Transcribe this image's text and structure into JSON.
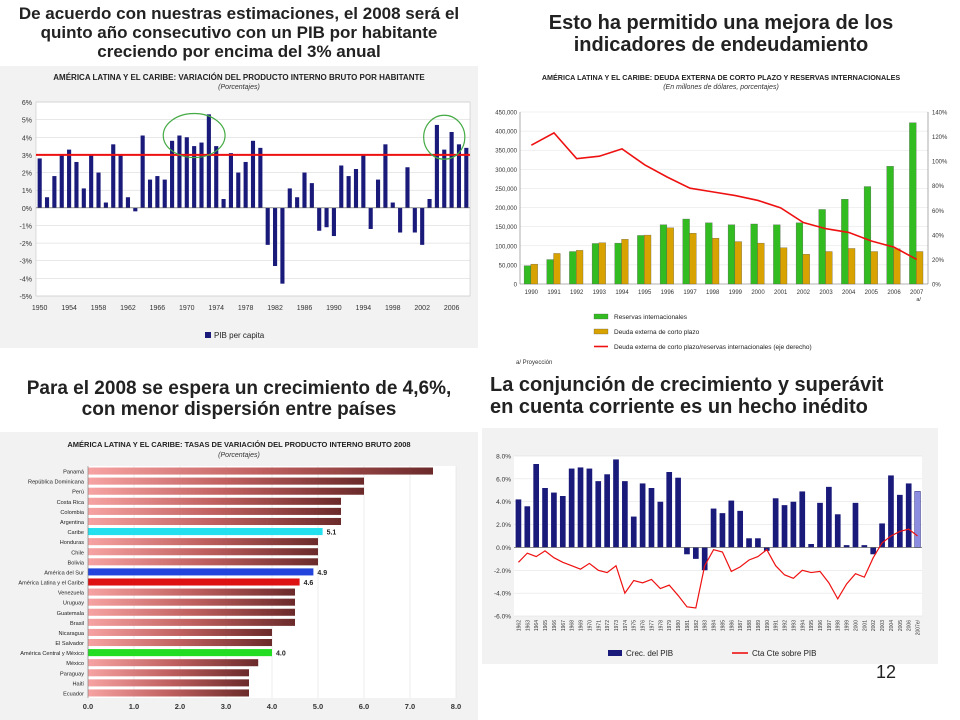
{
  "page_number": "12",
  "panels": {
    "top_left": {
      "heading": "De acuerdo con nuestras estimaciones, el 2008 será el\nquinto año consecutivo con un PIB por habitante\ncreciendo por encima del 3% anual",
      "chart_title": "AMÉRICA LATINA Y EL CARIBE: VARIACIÓN DEL PRODUCTO INTERNO BRUTO POR HABITANTE",
      "chart_subtitle": "(Porcentajes)",
      "legend_label": "PIB per capita"
    },
    "top_right": {
      "heading": "Esto ha permitido una mejora de los\nindicadores de endeudamiento",
      "chart_title": "AMÉRICA LATINA Y EL CARIBE: DEUDA EXTERNA DE CORTO PLAZO Y RESERVAS INTERNACIONALES",
      "chart_subtitle": "(En millones de dólares, porcentajes)",
      "footnote": "a/ Proyección"
    },
    "bottom_left": {
      "heading": "Para el 2008 se espera un crecimiento de 4,6%,\ncon menor dispersión entre países",
      "chart_title": "AMÉRICA LATINA Y EL CARIBE: TASAS DE VARIACIÓN DEL PRODUCTO INTERNO BRUTO 2008",
      "chart_subtitle": "(Porcentajes)"
    },
    "bottom_right": {
      "heading": "La conjunción de crecimiento y superávit\nen cuenta corriente es un hecho inédito"
    }
  },
  "colors": {
    "navy": "#1a1a7a",
    "red": "#ee1111",
    "green": "#33bb22",
    "gold": "#d8a200",
    "ellipse": "#44aa44"
  },
  "chart_data": [
    {
      "type": "bar",
      "title": "AMÉRICA LATINA Y EL CARIBE: VARIACIÓN DEL PRODUCTO INTERNO BRUTO POR HABITANTE",
      "subtitle": "(Porcentajes)",
      "ylim": [
        -5,
        6
      ],
      "yticks": [
        "6%",
        "5%",
        "4%",
        "3%",
        "2%",
        "1%",
        "0%",
        "-1%",
        "-2%",
        "-3%",
        "-4%",
        "-5%"
      ],
      "xtick_labels": [
        "1950",
        "1954",
        "1958",
        "1962",
        "1966",
        "1970",
        "1974",
        "1978",
        "1982",
        "1986",
        "1990",
        "1994",
        "1998",
        "2002",
        "2006"
      ],
      "x": [
        1950,
        1951,
        1952,
        1953,
        1954,
        1955,
        1956,
        1957,
        1958,
        1959,
        1960,
        1961,
        1962,
        1963,
        1964,
        1965,
        1966,
        1967,
        1968,
        1969,
        1970,
        1971,
        1972,
        1973,
        1974,
        1975,
        1976,
        1977,
        1978,
        1979,
        1980,
        1981,
        1982,
        1983,
        1984,
        1985,
        1986,
        1987,
        1988,
        1989,
        1990,
        1991,
        1992,
        1993,
        1994,
        1995,
        1996,
        1997,
        1998,
        1999,
        2000,
        2001,
        2002,
        2003,
        2004,
        2005,
        2006,
        2007,
        2008
      ],
      "series": [
        {
          "name": "PIB per capita",
          "values": [
            2.8,
            0.6,
            1.8,
            3.0,
            3.3,
            2.6,
            1.1,
            3.0,
            2.0,
            0.3,
            3.6,
            3.0,
            0.6,
            -0.2,
            4.1,
            1.6,
            1.8,
            1.6,
            3.8,
            4.1,
            4.0,
            3.5,
            3.7,
            5.3,
            3.5,
            0.5,
            3.1,
            2.0,
            2.6,
            3.8,
            3.4,
            -2.1,
            -3.3,
            -4.3,
            1.1,
            0.6,
            2.0,
            1.4,
            -1.3,
            -1.1,
            -1.6,
            2.4,
            1.8,
            2.2,
            3.0,
            -1.2,
            1.6,
            3.6,
            0.3,
            -1.4,
            2.3,
            -1.4,
            -2.1,
            0.5,
            4.7,
            3.3,
            4.3,
            3.6,
            3.4
          ]
        }
      ],
      "reference_line": 3,
      "legend": "bottom"
    },
    {
      "type": "bar",
      "title": "AMÉRICA LATINA Y EL CARIBE: DEUDA EXTERNA DE CORTO PLAZO Y RESERVAS INTERNACIONALES",
      "subtitle": "(En millones de dólares, porcentajes)",
      "categories": [
        "1990",
        "1991",
        "1992",
        "1993",
        "1994",
        "1995",
        "1996",
        "1997",
        "1998",
        "1999",
        "2000",
        "2001",
        "2002",
        "2003",
        "2004",
        "2005",
        "2006",
        "2007 a/"
      ],
      "ylim": [
        0,
        450000
      ],
      "yticks": [
        "0",
        "50,000",
        "100,000",
        "150,000",
        "200,000",
        "250,000",
        "300,000",
        "350,000",
        "400,000",
        "450,000"
      ],
      "y2lim": [
        0,
        140
      ],
      "y2ticks": [
        "0%",
        "20%",
        "40%",
        "60%",
        "80%",
        "100%",
        "120%",
        "140%"
      ],
      "series": [
        {
          "name": "Reservas internacionales",
          "values": [
            48000,
            64000,
            85000,
            106000,
            107000,
            127000,
            155000,
            170000,
            160000,
            155000,
            157000,
            155000,
            160000,
            195000,
            222000,
            255000,
            308000,
            422000
          ]
        },
        {
          "name": "Deuda externa de corto plazo",
          "values": [
            52000,
            80000,
            88000,
            108000,
            117000,
            128000,
            147000,
            133000,
            120000,
            111000,
            107000,
            95000,
            78000,
            85000,
            93000,
            85000,
            92000,
            85000
          ]
        },
        {
          "name": "Deuda externa de corto plazo/reservas internacionales (eje derecho)",
          "axis": "right",
          "values": [
            113,
            123,
            102,
            104,
            110,
            97,
            87,
            78,
            75,
            72,
            68,
            62,
            50,
            45,
            42,
            35,
            30,
            20
          ]
        }
      ],
      "legend": "bottom"
    },
    {
      "type": "bar",
      "title": "AMÉRICA LATINA Y EL CARIBE: TASAS DE VARIACIÓN DEL PRODUCTO INTERNO BRUTO 2008",
      "subtitle": "(Porcentajes)",
      "orientation": "horizontal",
      "categories": [
        "Panamá",
        "República Dominicana",
        "Perú",
        "Costa Rica",
        "Colombia",
        "Argentina",
        "Caribe",
        "Honduras",
        "Chile",
        "Bolivia",
        "América del Sur",
        "América Latina y el Caribe",
        "Venezuela",
        "Uruguay",
        "Guatemala",
        "Brasil",
        "Nicaragua",
        "El Salvador",
        "América Central y México",
        "México",
        "Paraguay",
        "Haití",
        "Ecuador"
      ],
      "values": [
        7.5,
        6.0,
        6.0,
        5.5,
        5.5,
        5.5,
        5.1,
        5.0,
        5.0,
        5.0,
        4.9,
        4.6,
        4.5,
        4.5,
        4.5,
        4.5,
        4.0,
        4.0,
        4.0,
        3.7,
        3.5,
        3.5,
        3.5
      ],
      "data_labels": {
        "Caribe": "5.1",
        "América del Sur": "4.9",
        "América Latina y el Caribe": "4.6",
        "América Central y México": "4.0"
      },
      "highlight_colors": {
        "Caribe": "#22e0ee",
        "América del Sur": "#2244dd",
        "América Latina y el Caribe": "#dd1111",
        "América Central y México": "#22dd22"
      },
      "xlim": [
        0,
        8
      ],
      "xticks": [
        "0.0",
        "1.0",
        "2.0",
        "3.0",
        "4.0",
        "5.0",
        "6.0",
        "7.0",
        "8.0"
      ]
    },
    {
      "type": "bar",
      "categories": [
        "1962",
        "1963",
        "1964",
        "1965",
        "1966",
        "1967",
        "1968",
        "1969",
        "1970",
        "1971",
        "1972",
        "1973",
        "1974",
        "1975",
        "1976",
        "1977",
        "1978",
        "1979",
        "1980",
        "1981",
        "1982",
        "1983",
        "1984",
        "1985",
        "1986",
        "1987",
        "1988",
        "1989",
        "1990",
        "1991",
        "1992",
        "1993",
        "1994",
        "1995",
        "1996",
        "1997",
        "1998",
        "1999",
        "2000",
        "2001",
        "2002",
        "2003",
        "2004",
        "2005",
        "2006",
        "2007e/"
      ],
      "ylim": [
        -6,
        8
      ],
      "yticks": [
        "8.0%",
        "6.0%",
        "4.0%",
        "2.0%",
        "0.0%",
        "-2.0%",
        "-4.0%",
        "-6.0%"
      ],
      "series": [
        {
          "name": "Crec. del PIB",
          "values": [
            4.2,
            3.6,
            7.3,
            5.2,
            4.8,
            4.5,
            6.9,
            7.0,
            6.9,
            5.8,
            6.4,
            7.7,
            5.8,
            2.7,
            5.6,
            5.2,
            4.0,
            6.6,
            6.1,
            -0.6,
            -1.0,
            -2.0,
            3.4,
            3.0,
            4.1,
            3.2,
            0.8,
            0.8,
            -0.3,
            4.3,
            3.7,
            4.0,
            4.9,
            0.3,
            3.9,
            5.3,
            2.9,
            0.2,
            3.9,
            0.2,
            -0.6,
            2.1,
            6.3,
            4.6,
            5.6,
            4.9
          ]
        },
        {
          "name": "Cta Cte sobre PIB",
          "values": [
            -1.3,
            -0.5,
            -0.8,
            -0.3,
            -0.9,
            -1.3,
            -1.6,
            -1.9,
            -1.4,
            -2.0,
            -2.2,
            -1.6,
            -4.0,
            -2.9,
            -3.1,
            -2.8,
            -3.6,
            -3.3,
            -4.2,
            -5.2,
            -5.3,
            -1.6,
            -0.2,
            -0.4,
            -2.1,
            -1.7,
            -1.1,
            -0.8,
            -0.2,
            -1.6,
            -2.4,
            -2.7,
            -2.0,
            -2.2,
            -2.1,
            -3.1,
            -4.5,
            -3.2,
            -2.3,
            -2.6,
            -0.9,
            0.4,
            1.0,
            1.4,
            1.6,
            1.0
          ]
        }
      ],
      "legend": "bottom"
    }
  ]
}
